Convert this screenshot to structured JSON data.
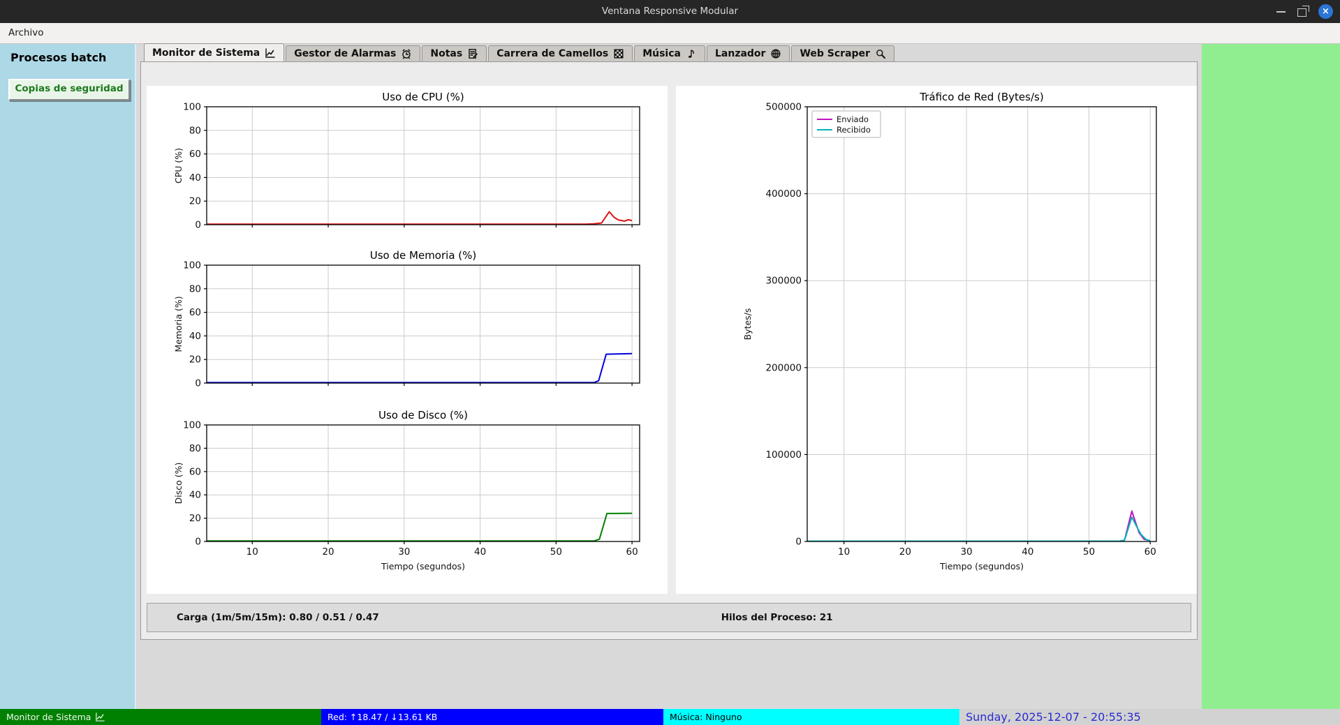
{
  "window": {
    "title": "Ventana Responsive Modular",
    "control_icons": [
      "minimize-icon",
      "maximize-icon",
      "close-icon"
    ]
  },
  "menu": {
    "items": [
      {
        "label": "Archivo"
      }
    ]
  },
  "sidebar": {
    "heading": "Procesos batch",
    "buttons": [
      {
        "label": "Copias de seguridad"
      }
    ],
    "bg_color": "#add8e6"
  },
  "right_panel": {
    "bg_color": "#90ee90"
  },
  "tabs": [
    {
      "label": "Monitor de Sistema",
      "icon": "line-chart-icon",
      "active": true
    },
    {
      "label": "Gestor de Alarmas",
      "icon": "alarm-clock-icon",
      "active": false
    },
    {
      "label": "Notas",
      "icon": "memo-icon",
      "active": false
    },
    {
      "label": "Carrera de Camellos",
      "icon": "checkered-flag-icon",
      "active": false
    },
    {
      "label": "Música",
      "icon": "music-note-icon",
      "active": false
    },
    {
      "label": "Lanzador",
      "icon": "globe-icon",
      "active": false
    },
    {
      "label": "Web Scraper",
      "icon": "magnifier-icon",
      "active": false
    }
  ],
  "monitor": {
    "load_label": "Carga (1m/5m/15m): 0.80 / 0.51 / 0.47",
    "threads_label": "Hilos del Proceso: 21"
  },
  "statusbar": {
    "module": {
      "label": "Monitor de Sistema",
      "icon": "line-chart-icon",
      "bg": "#008000",
      "fg": "#eef7ee"
    },
    "network": {
      "label": "Red: ↑18.47 / ↓13.61 KB",
      "bg": "#0000ff",
      "fg": "#ffffff"
    },
    "music": {
      "label": "Música: Ninguno",
      "bg": "#00ffff",
      "fg": "#000000"
    },
    "clock": {
      "label": "Sunday, 2025-12-07 - 20:55:35",
      "bg": "#d2d2d2",
      "fg": "#2a2ad0"
    }
  },
  "chart_data": [
    {
      "type": "line",
      "title": "Uso de CPU (%)",
      "ylabel": "CPU (%)",
      "xlabel": "",
      "xlim": [
        4,
        61
      ],
      "ylim": [
        0,
        100
      ],
      "xticks": [
        10,
        20,
        30,
        40,
        50,
        60
      ],
      "yticks": [
        0,
        20,
        40,
        60,
        80,
        100
      ],
      "grid": true,
      "series": [
        {
          "name": "CPU",
          "color": "#dd1111",
          "points": [
            [
              4,
              0.5
            ],
            [
              20,
              0.5
            ],
            [
              40,
              0.5
            ],
            [
              54,
              0.5
            ],
            [
              55,
              0.7
            ],
            [
              56,
              1.5
            ],
            [
              57,
              11
            ],
            [
              57.6,
              6.5
            ],
            [
              58.2,
              4
            ],
            [
              59,
              3
            ],
            [
              59.5,
              4.2
            ],
            [
              60,
              3.5
            ]
          ]
        }
      ]
    },
    {
      "type": "line",
      "title": "Uso de Memoria (%)",
      "ylabel": "Memoria (%)",
      "xlabel": "",
      "xlim": [
        4,
        61
      ],
      "ylim": [
        0,
        100
      ],
      "xticks": [
        10,
        20,
        30,
        40,
        50,
        60
      ],
      "yticks": [
        0,
        20,
        40,
        60,
        80,
        100
      ],
      "grid": true,
      "series": [
        {
          "name": "Memoria",
          "color": "#0000dd",
          "points": [
            [
              4,
              0.4
            ],
            [
              30,
              0.4
            ],
            [
              55,
              0.4
            ],
            [
              55.6,
              2
            ],
            [
              56.6,
              24.5
            ],
            [
              58,
              24.7
            ],
            [
              60,
              25
            ]
          ]
        }
      ]
    },
    {
      "type": "line",
      "title": "Uso de Disco (%)",
      "ylabel": "Disco (%)",
      "xlabel": "Tiempo (segundos)",
      "xlim": [
        4,
        61
      ],
      "ylim": [
        0,
        100
      ],
      "xticks": [
        10,
        20,
        30,
        40,
        50,
        60
      ],
      "yticks": [
        0,
        20,
        40,
        60,
        80,
        100
      ],
      "grid": true,
      "series": [
        {
          "name": "Disco",
          "color": "#008000",
          "points": [
            [
              4,
              0.4
            ],
            [
              30,
              0.4
            ],
            [
              55,
              0.4
            ],
            [
              55.7,
              2
            ],
            [
              56.7,
              24
            ],
            [
              60,
              24.2
            ]
          ]
        }
      ]
    },
    {
      "type": "line",
      "title": "Tráfico de Red (Bytes/s)",
      "ylabel": "Bytes/s",
      "xlabel": "Tiempo (segundos)",
      "xlim": [
        4,
        61
      ],
      "ylim": [
        0,
        500000
      ],
      "xticks": [
        10,
        20,
        30,
        40,
        50,
        60
      ],
      "yticks": [
        0,
        100000,
        200000,
        300000,
        400000,
        500000
      ],
      "grid": true,
      "legend": {
        "position": "upper-left"
      },
      "series": [
        {
          "name": "Enviado",
          "color": "#c213c2",
          "points": [
            [
              4,
              400
            ],
            [
              30,
              400
            ],
            [
              55,
              400
            ],
            [
              55.8,
              1500
            ],
            [
              57,
              35000
            ],
            [
              57.6,
              22000
            ],
            [
              58.2,
              10000
            ],
            [
              59,
              2500
            ],
            [
              60,
              900
            ]
          ]
        },
        {
          "name": "Recibido",
          "color": "#00b5b5",
          "points": [
            [
              4,
              400
            ],
            [
              30,
              400
            ],
            [
              55,
              400
            ],
            [
              55.8,
              1500
            ],
            [
              57,
              28000
            ],
            [
              57.8,
              17000
            ],
            [
              58.5,
              8000
            ],
            [
              59.3,
              2500
            ],
            [
              60,
              900
            ]
          ]
        }
      ]
    }
  ]
}
